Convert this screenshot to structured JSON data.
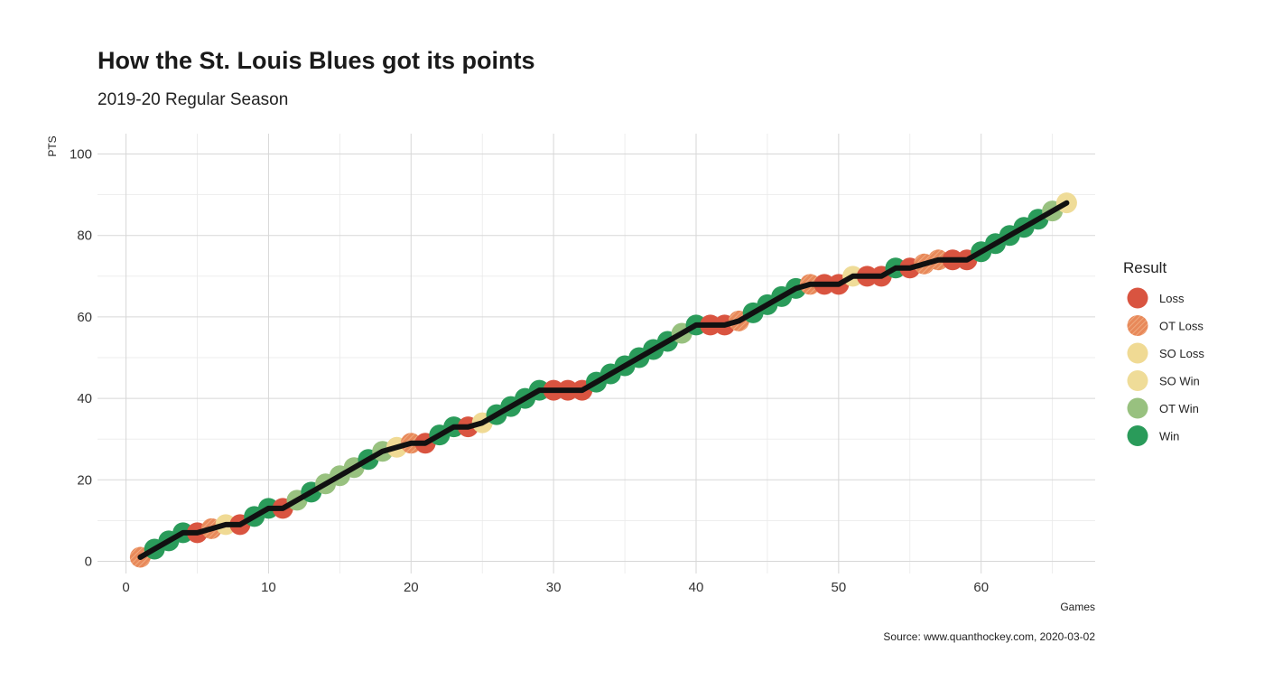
{
  "chart_data": {
    "type": "scatter",
    "title": "How the St. Louis Blues got its points",
    "subtitle": "2019-20 Regular Season",
    "xlabel": "Games",
    "ylabel": "PTS",
    "caption": "Source: www.quanthockey.com, 2020-03-02",
    "xlim": [
      -2,
      68
    ],
    "ylim": [
      -3,
      105
    ],
    "x_ticks": [
      0,
      10,
      20,
      30,
      40,
      50,
      60
    ],
    "y_ticks": [
      0,
      20,
      40,
      60,
      80,
      100
    ],
    "grid": true,
    "legend": {
      "title": "Result",
      "placement": "right",
      "items": [
        {
          "label": "Loss",
          "color": "#d95440",
          "pattern": false
        },
        {
          "label": "OT Loss",
          "color": "#e8895a",
          "pattern": true
        },
        {
          "label": "SO Loss",
          "color": "#f0da94",
          "pattern": false
        },
        {
          "label": "SO Win",
          "color": "#efdc98",
          "pattern": false
        },
        {
          "label": "OT Win",
          "color": "#98c17f",
          "pattern": false
        },
        {
          "label": "Win",
          "color": "#2a9b5a",
          "pattern": false
        }
      ]
    },
    "line_color": "#111111",
    "series": [
      {
        "game": 1,
        "pts": 1,
        "result": "OT Loss"
      },
      {
        "game": 2,
        "pts": 3,
        "result": "Win"
      },
      {
        "game": 3,
        "pts": 5,
        "result": "Win"
      },
      {
        "game": 4,
        "pts": 7,
        "result": "Win"
      },
      {
        "game": 5,
        "pts": 7,
        "result": "Loss"
      },
      {
        "game": 6,
        "pts": 8,
        "result": "OT Loss"
      },
      {
        "game": 7,
        "pts": 9,
        "result": "SO Loss"
      },
      {
        "game": 8,
        "pts": 9,
        "result": "Loss"
      },
      {
        "game": 9,
        "pts": 11,
        "result": "Win"
      },
      {
        "game": 10,
        "pts": 13,
        "result": "Win"
      },
      {
        "game": 11,
        "pts": 13,
        "result": "Loss"
      },
      {
        "game": 12,
        "pts": 15,
        "result": "OT Win"
      },
      {
        "game": 13,
        "pts": 17,
        "result": "Win"
      },
      {
        "game": 14,
        "pts": 19,
        "result": "OT Win"
      },
      {
        "game": 15,
        "pts": 21,
        "result": "OT Win"
      },
      {
        "game": 16,
        "pts": 23,
        "result": "OT Win"
      },
      {
        "game": 17,
        "pts": 25,
        "result": "Win"
      },
      {
        "game": 18,
        "pts": 27,
        "result": "OT Win"
      },
      {
        "game": 19,
        "pts": 28,
        "result": "SO Loss"
      },
      {
        "game": 20,
        "pts": 29,
        "result": "OT Loss"
      },
      {
        "game": 21,
        "pts": 29,
        "result": "Loss"
      },
      {
        "game": 22,
        "pts": 31,
        "result": "Win"
      },
      {
        "game": 23,
        "pts": 33,
        "result": "Win"
      },
      {
        "game": 24,
        "pts": 33,
        "result": "Loss"
      },
      {
        "game": 25,
        "pts": 34,
        "result": "SO Loss"
      },
      {
        "game": 26,
        "pts": 36,
        "result": "Win"
      },
      {
        "game": 27,
        "pts": 38,
        "result": "Win"
      },
      {
        "game": 28,
        "pts": 40,
        "result": "Win"
      },
      {
        "game": 29,
        "pts": 42,
        "result": "Win"
      },
      {
        "game": 30,
        "pts": 42,
        "result": "Loss"
      },
      {
        "game": 31,
        "pts": 42,
        "result": "Loss"
      },
      {
        "game": 32,
        "pts": 42,
        "result": "Loss"
      },
      {
        "game": 33,
        "pts": 44,
        "result": "Win"
      },
      {
        "game": 34,
        "pts": 46,
        "result": "Win"
      },
      {
        "game": 35,
        "pts": 48,
        "result": "Win"
      },
      {
        "game": 36,
        "pts": 50,
        "result": "Win"
      },
      {
        "game": 37,
        "pts": 52,
        "result": "Win"
      },
      {
        "game": 38,
        "pts": 54,
        "result": "Win"
      },
      {
        "game": 39,
        "pts": 56,
        "result": "OT Win"
      },
      {
        "game": 40,
        "pts": 58,
        "result": "Win"
      },
      {
        "game": 41,
        "pts": 58,
        "result": "Loss"
      },
      {
        "game": 42,
        "pts": 58,
        "result": "Loss"
      },
      {
        "game": 43,
        "pts": 59,
        "result": "OT Loss"
      },
      {
        "game": 44,
        "pts": 61,
        "result": "Win"
      },
      {
        "game": 45,
        "pts": 63,
        "result": "Win"
      },
      {
        "game": 46,
        "pts": 65,
        "result": "Win"
      },
      {
        "game": 47,
        "pts": 67,
        "result": "Win"
      },
      {
        "game": 48,
        "pts": 68,
        "result": "OT Loss"
      },
      {
        "game": 49,
        "pts": 68,
        "result": "Loss"
      },
      {
        "game": 50,
        "pts": 68,
        "result": "Loss"
      },
      {
        "game": 51,
        "pts": 70,
        "result": "SO Win"
      },
      {
        "game": 52,
        "pts": 70,
        "result": "Loss"
      },
      {
        "game": 53,
        "pts": 70,
        "result": "Loss"
      },
      {
        "game": 54,
        "pts": 72,
        "result": "Win"
      },
      {
        "game": 55,
        "pts": 72,
        "result": "Loss"
      },
      {
        "game": 56,
        "pts": 73,
        "result": "OT Loss"
      },
      {
        "game": 57,
        "pts": 74,
        "result": "OT Loss"
      },
      {
        "game": 58,
        "pts": 74,
        "result": "Loss"
      },
      {
        "game": 59,
        "pts": 74,
        "result": "Loss"
      },
      {
        "game": 60,
        "pts": 76,
        "result": "Win"
      },
      {
        "game": 61,
        "pts": 78,
        "result": "Win"
      },
      {
        "game": 62,
        "pts": 80,
        "result": "Win"
      },
      {
        "game": 63,
        "pts": 82,
        "result": "Win"
      },
      {
        "game": 64,
        "pts": 84,
        "result": "Win"
      },
      {
        "game": 65,
        "pts": 86,
        "result": "OT Win"
      },
      {
        "game": 66,
        "pts": 88,
        "result": "SO Win"
      }
    ]
  }
}
